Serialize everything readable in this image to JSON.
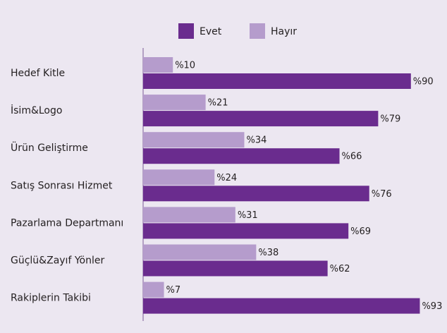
{
  "chart_data": {
    "type": "bar",
    "orientation": "horizontal",
    "categories": [
      "Hedef Kitle",
      "İsim&Logo",
      "Ürün Geliştirme",
      "Satış Sonrası Hizmet",
      "Pazarlama Departmanı",
      "Güçlü&Zayıf Yönler",
      "Rakiplerin Takibi"
    ],
    "series": [
      {
        "name": "Evet",
        "color": "#6a2c8e",
        "values": [
          90,
          79,
          66,
          76,
          69,
          62,
          93
        ],
        "value_labels": [
          "%90",
          "%79",
          "%66",
          "%76",
          "%69",
          "%62",
          "%93"
        ]
      },
      {
        "name": "Hayır",
        "color": "#b59ccc",
        "values": [
          10,
          21,
          34,
          24,
          31,
          38,
          7
        ],
        "value_labels": [
          "%10",
          "%21",
          "%34",
          "%24",
          "%31",
          "%38",
          "%7"
        ]
      }
    ]
  }
}
